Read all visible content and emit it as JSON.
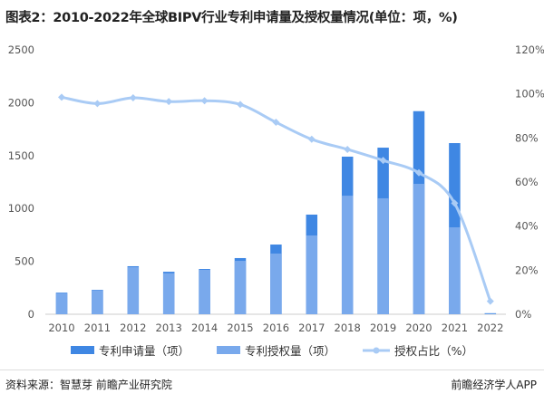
{
  "title": "图表2：2010-2022年全球BIPV行业专利申请量及授权量情况(单位：项，%)",
  "chart_data": {
    "type": "bar",
    "title": "图表2：2010-2022年全球BIPV行业专利申请量及授权量情况(单位：项，%)",
    "categories": [
      "2010",
      "2011",
      "2012",
      "2013",
      "2014",
      "2015",
      "2016",
      "2017",
      "2018",
      "2019",
      "2020",
      "2021",
      "2022"
    ],
    "series": [
      {
        "name": "专利申请量（项）",
        "type": "bar",
        "color": "#3f87e3",
        "values": [
          205,
          231,
          454,
          402,
          428,
          531,
          659,
          942,
          1490,
          1575,
          1920,
          1618,
          10
        ]
      },
      {
        "name": "专利授权量（项）",
        "type": "bar",
        "color": "#79a9ec",
        "values": [
          201,
          227,
          445,
          388,
          420,
          505,
          574,
          745,
          1121,
          1096,
          1233,
          822,
          5
        ]
      },
      {
        "name": "授权占比（%）",
        "type": "line",
        "axis": "right",
        "color": "#a9cbf5",
        "values": [
          98.5,
          95.6,
          98.2,
          96.5,
          96.9,
          95.2,
          87.1,
          79.4,
          74.8,
          69.8,
          64.2,
          50.4,
          5.9
        ]
      }
    ],
    "left_axis": {
      "ylim": [
        0,
        2500
      ],
      "ticks": [
        "0",
        "500",
        "1000",
        "1500",
        "2000",
        "2500"
      ]
    },
    "right_axis": {
      "ylim": [
        0,
        120
      ],
      "ticks": [
        "0%",
        "20%",
        "40%",
        "60%",
        "80%",
        "100%",
        "120%"
      ]
    },
    "grid": false,
    "legend": "bottom"
  },
  "source": "资料来源：智慧芽 前瞻产业研究院",
  "brand": "前瞻经济学人APP"
}
